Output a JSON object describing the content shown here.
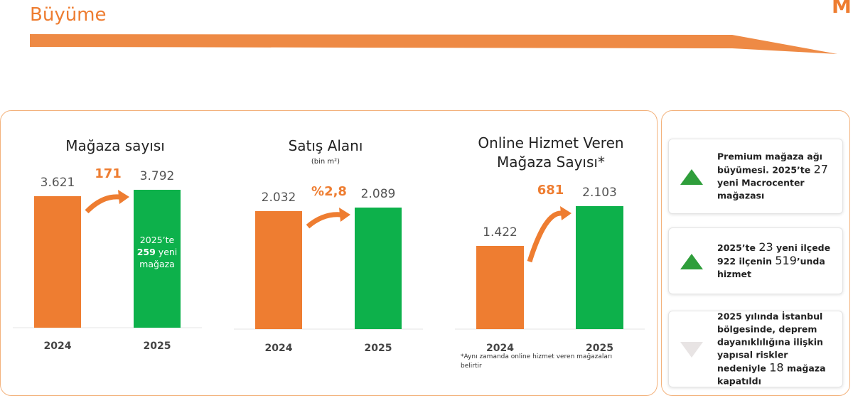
{
  "header": {
    "title": "Büyüme",
    "logo": "M"
  },
  "chart_data": [
    {
      "type": "bar",
      "title": "Mağaza sayısı",
      "categories": [
        "2024",
        "2025"
      ],
      "values": [
        3621,
        3792
      ],
      "value_labels": [
        "3.621",
        "3.792"
      ],
      "colors": [
        "#ee7d31",
        "#0db14b"
      ],
      "annotation": "171",
      "bar_note": {
        "prefix": "2025’te",
        "highlight": "259",
        "suffix": "yeni mağaza"
      }
    },
    {
      "type": "bar",
      "title": "Satış Alanı",
      "subtitle": "(bin m²)",
      "categories": [
        "2024",
        "2025"
      ],
      "values": [
        2032,
        2089
      ],
      "value_labels": [
        "2.032",
        "2.089"
      ],
      "colors": [
        "#ee7d31",
        "#0db14b"
      ],
      "annotation": "%2,8"
    },
    {
      "type": "bar",
      "title": "Online Hizmet Veren Mağaza Sayısı*",
      "categories": [
        "2024",
        "2025"
      ],
      "values": [
        1422,
        2103
      ],
      "value_labels": [
        "1.422",
        "2.103"
      ],
      "colors": [
        "#ee7d31",
        "#0db14b"
      ],
      "annotation": "681",
      "footnote": "*Aynı zamanda online hizmet veren mağazaları belirtir"
    }
  ],
  "highlights": [
    {
      "trend": "up",
      "parts": [
        "Premium mağaza ağı büyümesi. 2025’te ",
        "27",
        " yeni Macrocenter mağazası"
      ]
    },
    {
      "trend": "up",
      "parts": [
        "2025’te ",
        "23",
        " yeni ilçede 922 ilçenin ",
        "519",
        "’unda hizmet"
      ]
    },
    {
      "trend": "down",
      "parts": [
        "2025 yılında İstanbul bölgesinde, deprem dayanıklılığına ilişkin yapısal riskler nedeniyle ",
        "18",
        " mağaza kapatıldı"
      ]
    }
  ]
}
